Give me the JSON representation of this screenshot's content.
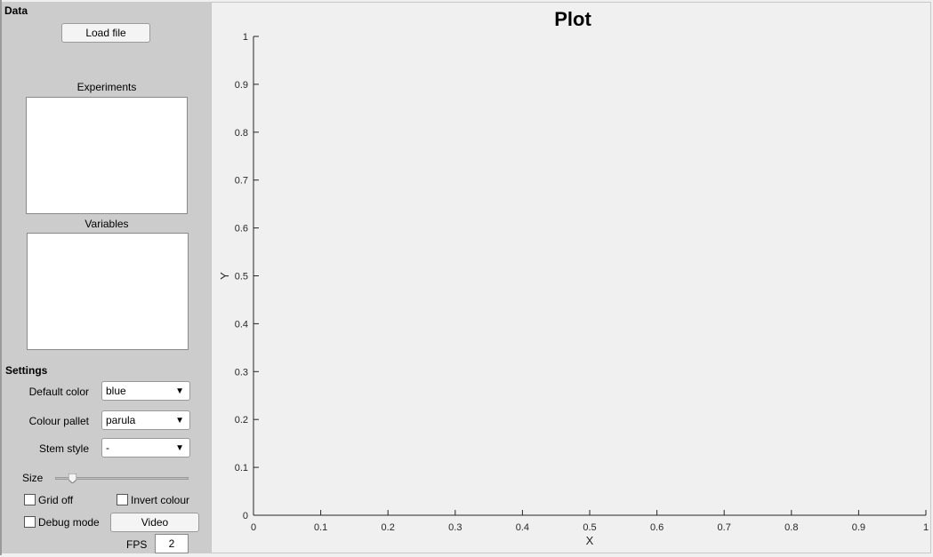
{
  "data_section": {
    "title": "Data",
    "load_button": "Load file",
    "experiments_label": "Experiments",
    "variables_label": "Variables"
  },
  "settings": {
    "title": "Settings",
    "default_color_label": "Default color",
    "default_color_value": "blue",
    "colour_pallet_label": "Colour pallet",
    "colour_pallet_value": "parula",
    "stem_style_label": "Stem style",
    "stem_style_value": "-",
    "size_label": "Size",
    "size_value": 0.05,
    "grid_off_label": "Grid off",
    "invert_colour_label": "Invert colour",
    "debug_mode_label": "Debug mode",
    "video_button": "Video",
    "fps_label": "FPS",
    "fps_value": "2"
  },
  "chart_data": {
    "type": "line",
    "title": "Plot",
    "xlabel": "X",
    "ylabel": "Y",
    "xlim": [
      0,
      1
    ],
    "ylim": [
      0,
      1
    ],
    "xticks": [
      "0",
      "0.1",
      "0.2",
      "0.3",
      "0.4",
      "0.5",
      "0.6",
      "0.7",
      "0.8",
      "0.9",
      "1"
    ],
    "yticks": [
      "0",
      "0.1",
      "0.2",
      "0.3",
      "0.4",
      "0.5",
      "0.6",
      "0.7",
      "0.8",
      "0.9",
      "1"
    ],
    "series": [],
    "grid": false
  }
}
